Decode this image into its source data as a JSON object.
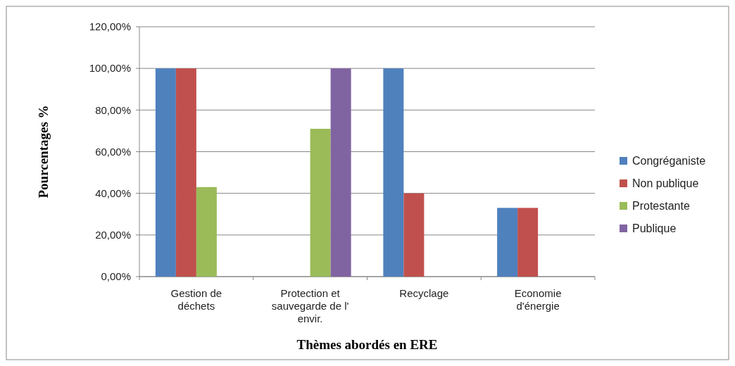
{
  "chart_data": {
    "type": "bar",
    "xlabel": "Thèmes abordés en ERE",
    "ylabel": "Pourcentages %",
    "categories": [
      "Gestion de déchets",
      "Protection et sauvegarde de l' envir.",
      "Recyclage",
      "Economie d'énergie"
    ],
    "series": [
      {
        "name": "Congréganiste",
        "color": "#4f81bd",
        "values": [
          100,
          0,
          100,
          33
        ]
      },
      {
        "name": "Non publique",
        "color": "#c0504d",
        "values": [
          100,
          0,
          40,
          33
        ]
      },
      {
        "name": "Protestante",
        "color": "#9bbb59",
        "values": [
          43,
          71,
          0,
          0
        ]
      },
      {
        "name": "Publique",
        "color": "#8064a2",
        "values": [
          0,
          100,
          0,
          0
        ]
      }
    ],
    "ylim": [
      0,
      120
    ],
    "yticks": [
      {
        "value": 0,
        "label": "0,00%"
      },
      {
        "value": 20,
        "label": "20,00%"
      },
      {
        "value": 40,
        "label": "40,00%"
      },
      {
        "value": 60,
        "label": "60,00%"
      },
      {
        "value": 80,
        "label": "80,00%"
      },
      {
        "value": 100,
        "label": "100,00%"
      },
      {
        "value": 120,
        "label": "120,00%"
      }
    ],
    "grid": "y",
    "legend": "right"
  }
}
